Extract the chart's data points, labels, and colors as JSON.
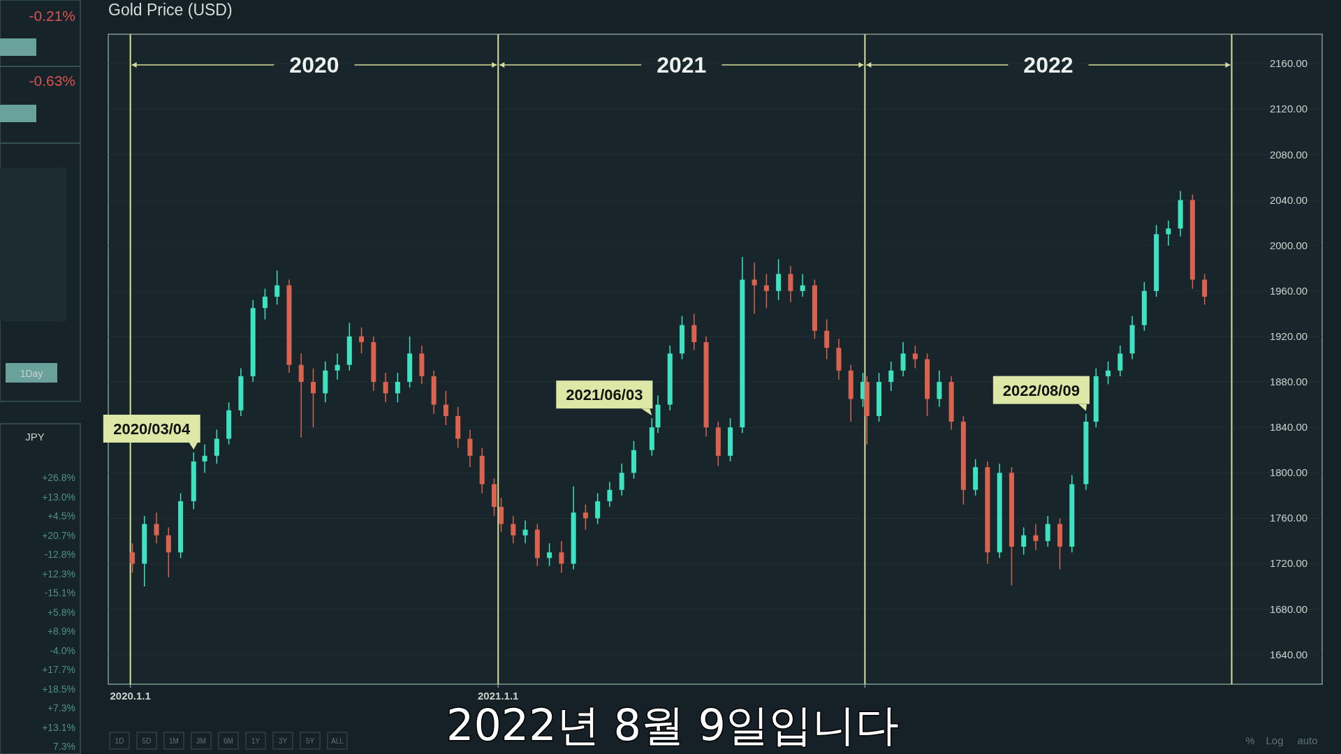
{
  "chart_data": [
    {
      "type": "candlestick",
      "title": "Gold Price (USD)",
      "subtitle": "2022년 8월 9일입니다",
      "xlim": [
        "2019-12-10",
        "2023-04-01"
      ],
      "ylim": [
        1614,
        2186
      ],
      "xticks": [
        {
          "value": "2020-01-01",
          "label": "2020.1.1"
        },
        {
          "value": "2021-01-01",
          "label": "2021.1.1"
        },
        {
          "value": "2022-01-01",
          "label": null
        }
      ],
      "yticks": [
        {
          "value": 1640,
          "label": "1640.00"
        },
        {
          "value": 1680,
          "label": "1680.00"
        },
        {
          "value": 1720,
          "label": "1720.00"
        },
        {
          "value": 1760,
          "label": "1760.00"
        },
        {
          "value": 1800,
          "label": "1800.00"
        },
        {
          "value": 1840,
          "label": "1840.00"
        },
        {
          "value": 1880,
          "label": "1880.00"
        },
        {
          "value": 1920,
          "label": "1920.00"
        },
        {
          "value": 1960,
          "label": "1960.00"
        },
        {
          "value": 2000,
          "label": "2000.00"
        },
        {
          "value": 2040,
          "label": "2040.00"
        },
        {
          "value": 2080,
          "label": "2080.00"
        },
        {
          "value": 2120,
          "label": "2120.00"
        },
        {
          "value": 2160,
          "label": "2160.00"
        }
      ],
      "ref_lines": [
        {
          "axis": "x",
          "value": "2020-01-01",
          "color": "#d6df9c"
        },
        {
          "axis": "x",
          "value": "2021-01-01",
          "color": "#d6df9c"
        },
        {
          "axis": "x",
          "value": "2022-01-01",
          "color": "#d6df9c"
        },
        {
          "axis": "x",
          "value": "2023-01-01",
          "color": "#d6df9c"
        }
      ],
      "grid": true,
      "series": [
        {
          "color": "#3fe2c0",
          "x": [
            "2020-01-15",
            "2020-02-20",
            "2020-03-04",
            "2020-03-15",
            "2020-03-27",
            "2020-04-08",
            "2020-04-20",
            "2020-05-02",
            "2020-05-14",
            "2020-05-26",
            "2020-07-13",
            "2020-07-25",
            "2020-08-06",
            "2020-09-23",
            "2020-10-05",
            "2021-01-28",
            "2021-02-21",
            "2021-03-17",
            "2021-04-10",
            "2021-04-22",
            "2021-05-04",
            "2021-05-16",
            "2021-06-03",
            "2021-06-09",
            "2021-06-21",
            "2021-07-03",
            "2021-08-20",
            "2021-09-01",
            "2021-10-07",
            "2021-10-31",
            "2021-12-30",
            "2022-01-15",
            "2022-01-27",
            "2022-02-08",
            "2022-03-16",
            "2022-04-21",
            "2022-05-15",
            "2022-06-08",
            "2022-07-02",
            "2022-07-26",
            "2022-08-09",
            "2022-08-19",
            "2022-08-31",
            "2022-09-12",
            "2022-09-24",
            "2022-10-06",
            "2022-10-18",
            "2022-10-30",
            "2022-11-11"
          ],
          "ohlc": [
            [
              1720,
              1762,
              1700,
              1755
            ],
            [
              1730,
              1782,
              1725,
              1775
            ],
            [
              1775,
              1818,
              1768,
              1810
            ],
            [
              1810,
              1825,
              1800,
              1815
            ],
            [
              1815,
              1838,
              1808,
              1830
            ],
            [
              1830,
              1862,
              1825,
              1855
            ],
            [
              1855,
              1892,
              1850,
              1885
            ],
            [
              1885,
              1952,
              1880,
              1945
            ],
            [
              1945,
              1962,
              1935,
              1955
            ],
            [
              1955,
              1978,
              1948,
              1965
            ],
            [
              1870,
              1898,
              1862,
              1890
            ],
            [
              1890,
              1905,
              1882,
              1895
            ],
            [
              1895,
              1932,
              1890,
              1920
            ],
            [
              1870,
              1888,
              1862,
              1880
            ],
            [
              1880,
              1920,
              1875,
              1905
            ],
            [
              1745,
              1758,
              1738,
              1750
            ],
            [
              1725,
              1738,
              1718,
              1730
            ],
            [
              1720,
              1788,
              1715,
              1765
            ],
            [
              1760,
              1782,
              1755,
              1775
            ],
            [
              1775,
              1792,
              1770,
              1785
            ],
            [
              1785,
              1808,
              1780,
              1800
            ],
            [
              1800,
              1828,
              1795,
              1820
            ],
            [
              1820,
              1848,
              1815,
              1840
            ],
            [
              1840,
              1868,
              1835,
              1860
            ],
            [
              1860,
              1912,
              1855,
              1905
            ],
            [
              1905,
              1938,
              1900,
              1930
            ],
            [
              1815,
              1848,
              1810,
              1840
            ],
            [
              1840,
              1990,
              1835,
              1970
            ],
            [
              1960,
              1988,
              1952,
              1975
            ],
            [
              1960,
              1975,
              1955,
              1965
            ],
            [
              1865,
              1888,
              1858,
              1880
            ],
            [
              1850,
              1888,
              1845,
              1880
            ],
            [
              1880,
              1898,
              1872,
              1890
            ],
            [
              1890,
              1915,
              1885,
              1905
            ],
            [
              1865,
              1890,
              1858,
              1880
            ],
            [
              1785,
              1812,
              1780,
              1805
            ],
            [
              1730,
              1808,
              1725,
              1800
            ],
            [
              1735,
              1752,
              1728,
              1745
            ],
            [
              1740,
              1762,
              1735,
              1755
            ],
            [
              1735,
              1798,
              1730,
              1790
            ],
            [
              1790,
              1852,
              1785,
              1845
            ],
            [
              1845,
              1892,
              1840,
              1885
            ],
            [
              1885,
              1898,
              1878,
              1890
            ],
            [
              1890,
              1912,
              1885,
              1905
            ],
            [
              1905,
              1938,
              1900,
              1930
            ],
            [
              1930,
              1968,
              1925,
              1960
            ],
            [
              1960,
              2018,
              1955,
              2010
            ],
            [
              2010,
              2022,
              2000,
              2015
            ],
            [
              2015,
              2048,
              2008,
              2040
            ]
          ]
        },
        {
          "color": "#d9634e",
          "x": [
            "2020-01-03",
            "2020-01-27",
            "2020-02-08",
            "2020-06-07",
            "2020-06-19",
            "2020-07-01",
            "2020-08-18",
            "2020-08-30",
            "2020-09-11",
            "2020-10-17",
            "2020-10-29",
            "2020-11-10",
            "2020-11-22",
            "2020-12-04",
            "2020-12-16",
            "2020-12-28",
            "2021-01-04",
            "2021-01-16",
            "2021-02-09",
            "2021-03-05",
            "2021-03-29",
            "2021-07-15",
            "2021-07-27",
            "2021-08-08",
            "2021-09-13",
            "2021-09-25",
            "2021-10-19",
            "2021-11-12",
            "2021-11-24",
            "2021-12-06",
            "2021-12-18",
            "2022-01-03",
            "2022-02-20",
            "2022-03-04",
            "2022-03-28",
            "2022-04-09",
            "2022-05-03",
            "2022-05-27",
            "2022-06-20",
            "2022-07-14",
            "2022-11-23",
            "2022-12-05"
          ],
          "ohlc": [
            [
              1730,
              1738,
              1712,
              1720
            ],
            [
              1755,
              1765,
              1738,
              1745
            ],
            [
              1745,
              1752,
              1708,
              1730
            ],
            [
              1965,
              1970,
              1888,
              1895
            ],
            [
              1895,
              1905,
              1831,
              1880
            ],
            [
              1880,
              1892,
              1840,
              1870
            ],
            [
              1920,
              1928,
              1905,
              1915
            ],
            [
              1915,
              1920,
              1872,
              1880
            ],
            [
              1880,
              1888,
              1862,
              1870
            ],
            [
              1905,
              1912,
              1878,
              1885
            ],
            [
              1885,
              1890,
              1852,
              1860
            ],
            [
              1860,
              1872,
              1842,
              1850
            ],
            [
              1850,
              1858,
              1822,
              1830
            ],
            [
              1830,
              1838,
              1805,
              1815
            ],
            [
              1815,
              1822,
              1782,
              1790
            ],
            [
              1790,
              1795,
              1762,
              1770
            ],
            [
              1770,
              1778,
              1748,
              1755
            ],
            [
              1755,
              1762,
              1738,
              1745
            ],
            [
              1750,
              1755,
              1718,
              1725
            ],
            [
              1730,
              1740,
              1712,
              1720
            ],
            [
              1765,
              1772,
              1750,
              1760
            ],
            [
              1930,
              1940,
              1908,
              1915
            ],
            [
              1915,
              1920,
              1832,
              1840
            ],
            [
              1840,
              1845,
              1806,
              1815
            ],
            [
              1970,
              1985,
              1940,
              1965
            ],
            [
              1965,
              1975,
              1945,
              1960
            ],
            [
              1975,
              1982,
              1950,
              1960
            ],
            [
              1965,
              1970,
              1918,
              1925
            ],
            [
              1925,
              1935,
              1900,
              1910
            ],
            [
              1910,
              1918,
              1882,
              1890
            ],
            [
              1890,
              1895,
              1845,
              1865
            ],
            [
              1880,
              1885,
              1825,
              1850
            ],
            [
              1905,
              1912,
              1892,
              1900
            ],
            [
              1900,
              1905,
              1850,
              1865
            ],
            [
              1880,
              1885,
              1838,
              1845
            ],
            [
              1845,
              1850,
              1772,
              1785
            ],
            [
              1805,
              1810,
              1720,
              1730
            ],
            [
              1800,
              1805,
              1701,
              1735
            ],
            [
              1745,
              1755,
              1732,
              1740
            ],
            [
              1755,
              1760,
              1715,
              1735
            ],
            [
              2040,
              2045,
              1962,
              1970
            ],
            [
              1970,
              1975,
              1948,
              1955
            ]
          ]
        }
      ],
      "annotations": [
        {
          "text": "2020/03/04",
          "x": "2020-03-04",
          "y": 1818
        },
        {
          "text": "2021/06/03",
          "x": "2021-06-03",
          "y": 1848
        },
        {
          "text": "2022/08/09",
          "x": "2022-08-09",
          "y": 1852
        },
        "2020",
        "2021",
        "2022",
        "1D",
        "5D",
        "1M",
        "3M",
        "6M",
        "1Y",
        "3Y",
        "5Y",
        "ALL",
        "%",
        "Log",
        "auto"
      ]
    },
    {
      "type": "other",
      "annotations": [
        "-0.21%",
        "-0.63%",
        "1Day",
        "JPY",
        "+26.8%",
        "+13.0%",
        "+4.5%",
        "+20.7%",
        "-12.8%",
        "+12.3%",
        "-15.1%",
        "+5.8%",
        "+8.9%",
        "-4.0%",
        "+17.7%",
        "+18.5%",
        "+7.3%",
        "+13.1%",
        "7.3%"
      ]
    }
  ]
}
